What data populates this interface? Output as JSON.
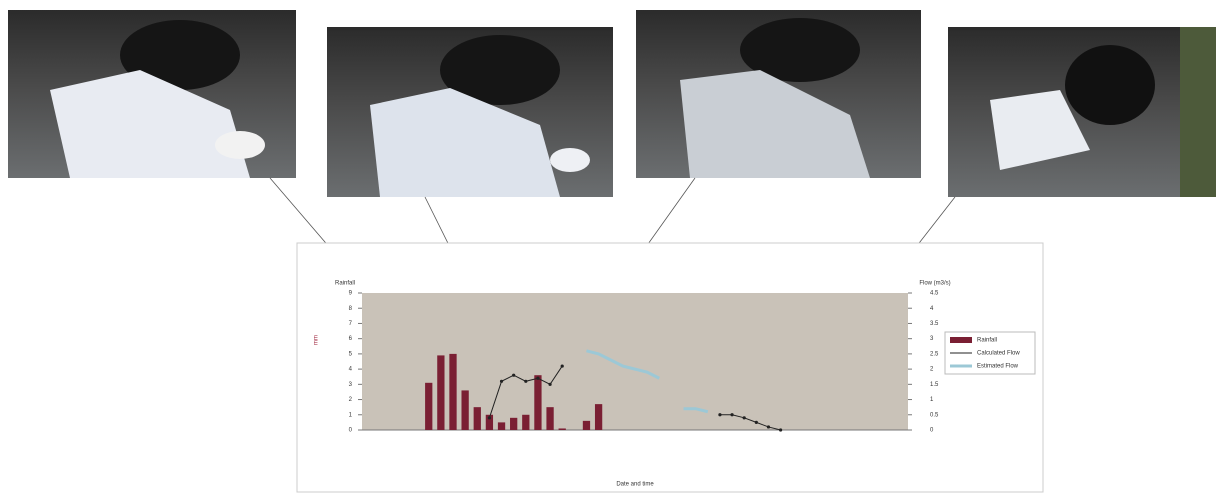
{
  "chart_data": {
    "type": "bar",
    "y_axis_title": "Rainfall",
    "y_unit_label": "mm",
    "y2_axis_title": "Flow (m3/s)",
    "x_axis_title": "Date and time",
    "categories": [
      null,
      null,
      null,
      null,
      null,
      null,
      null,
      null,
      null,
      null,
      null,
      null,
      null,
      null,
      null,
      null,
      null,
      null,
      null,
      null,
      null,
      null,
      null,
      null,
      null,
      null,
      null,
      null,
      null,
      null,
      null,
      null,
      null,
      null,
      null,
      null,
      null,
      null,
      null,
      null,
      null,
      null,
      null,
      null,
      null
    ],
    "ylim": [
      0,
      9
    ],
    "yticks": [
      0,
      1,
      2,
      3,
      4,
      5,
      6,
      7,
      8,
      9
    ],
    "y2lim": [
      0,
      4.5
    ],
    "y2ticks": [
      0,
      0.5,
      1,
      1.5,
      2,
      2.5,
      3,
      3.5,
      4,
      4.5
    ],
    "legend": "right",
    "series": [
      {
        "name": "Rainfall",
        "type": "bar",
        "color": "#7a1f33",
        "values": [
          null,
          null,
          null,
          null,
          null,
          3.1,
          4.9,
          5.0,
          2.6,
          1.5,
          1.0,
          0.5,
          0.8,
          1.0,
          3.6,
          1.5,
          0.1,
          null,
          0.6,
          1.7,
          null,
          null,
          null,
          null,
          null,
          null,
          null,
          null,
          null,
          null,
          null,
          null,
          null,
          null,
          null,
          null,
          null,
          null,
          null,
          null,
          null,
          null,
          null,
          null,
          null
        ]
      },
      {
        "name": "Calculated Flow",
        "type": "line",
        "axis": "y2",
        "color": "#222222",
        "values": [
          null,
          null,
          null,
          null,
          null,
          null,
          null,
          null,
          null,
          null,
          0.4,
          1.6,
          1.8,
          1.6,
          1.7,
          1.5,
          2.1,
          null,
          null,
          null,
          null,
          null,
          null,
          null,
          null,
          null,
          null,
          null,
          null,
          0.5,
          0.5,
          0.4,
          0.25,
          0.1,
          0,
          null,
          null,
          null,
          null,
          null,
          null,
          null,
          null,
          null,
          null
        ]
      },
      {
        "name": "Estimated Flow",
        "type": "line",
        "axis": "y2",
        "color": "#9cc8d6",
        "values": [
          null,
          null,
          null,
          null,
          null,
          null,
          null,
          null,
          null,
          null,
          null,
          null,
          null,
          null,
          null,
          null,
          null,
          null,
          2.6,
          2.5,
          2.3,
          2.1,
          2.0,
          1.9,
          1.7,
          null,
          0.7,
          0.7,
          0.6,
          null,
          null,
          null,
          null,
          null,
          null,
          null,
          null,
          null,
          null,
          null,
          null,
          null,
          null,
          null,
          null
        ]
      }
    ]
  }
}
